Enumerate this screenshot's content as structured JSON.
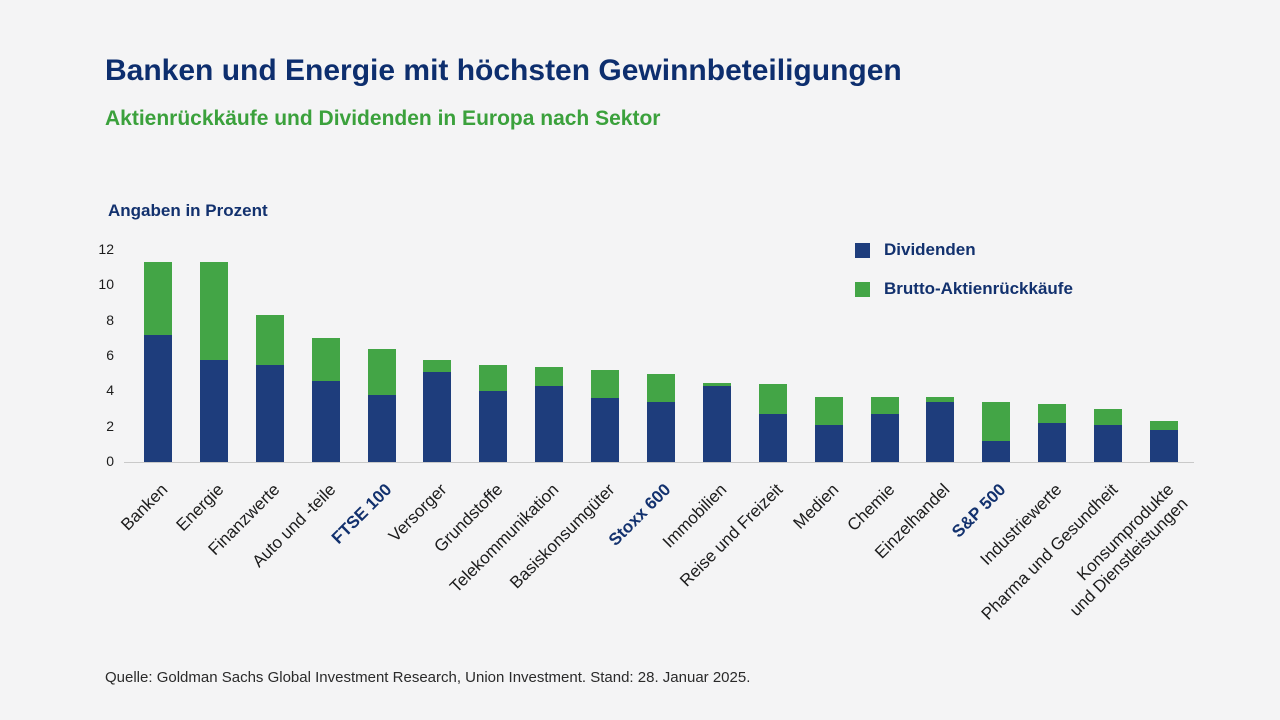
{
  "header": {
    "title": "Banken und Energie mit höchsten Gewinnbeteiligungen",
    "subtitle": "Aktienrückkäufe und Dividenden in Europa nach Sektor"
  },
  "chart": {
    "unit_label": "Angaben in Prozent"
  },
  "legend": [
    {
      "label": "Dividenden",
      "color": "#1e3d7c"
    },
    {
      "label": "Brutto-Aktienrückkäufe",
      "color": "#43a546"
    }
  ],
  "source": "Quelle: Goldman Sachs Global Investment Research, Union Investment. Stand: 28. Januar 2025.",
  "colors": {
    "title_navy": "#0d2e6e",
    "subtitle_green": "#3ba13c",
    "bar_blue": "#1e3d7c",
    "bar_green": "#43a546",
    "background": "#f4f4f5"
  },
  "chart_data": {
    "type": "bar",
    "stacked": true,
    "title": "Banken und Energie mit höchsten Gewinnbeteiligungen",
    "subtitle": "Aktienrückkäufe und Dividenden in Europa nach Sektor",
    "ylabel": "Angaben in Prozent",
    "ylim": [
      0,
      12
    ],
    "yticks": [
      0,
      2,
      4,
      6,
      8,
      10,
      12
    ],
    "grid": false,
    "legend_position": "top-right",
    "categories": [
      "Banken",
      "Energie",
      "Finanzwerte",
      "Auto und -teile",
      "FTSE 100",
      "Versorger",
      "Grundstoffe",
      "Telekommunikation",
      "Basiskonsumgüter",
      "Stoxx 600",
      "Immobilien",
      "Reise und Freizeit",
      "Medien",
      "Chemie",
      "Einzelhandel",
      "S&P 500",
      "Industriewerte",
      "Pharma und Gesundheit",
      "Konsumprodukte\nund Dienstleistungen"
    ],
    "emphasized_categories": [
      "FTSE 100",
      "Stoxx 600",
      "S&P 500"
    ],
    "series": [
      {
        "name": "Dividenden",
        "color": "#1e3d7c",
        "values": [
          7.2,
          5.8,
          5.5,
          4.6,
          3.8,
          5.1,
          4.0,
          4.3,
          3.6,
          3.4,
          4.3,
          2.7,
          2.1,
          2.7,
          3.4,
          1.2,
          2.2,
          2.1,
          1.8
        ]
      },
      {
        "name": "Brutto-Aktienrückkäufe",
        "color": "#43a546",
        "values": [
          4.1,
          5.5,
          2.8,
          2.4,
          2.6,
          0.7,
          1.5,
          1.1,
          1.6,
          1.6,
          0.2,
          1.7,
          1.6,
          1.0,
          0.3,
          2.2,
          1.1,
          0.9,
          0.5
        ]
      }
    ]
  }
}
